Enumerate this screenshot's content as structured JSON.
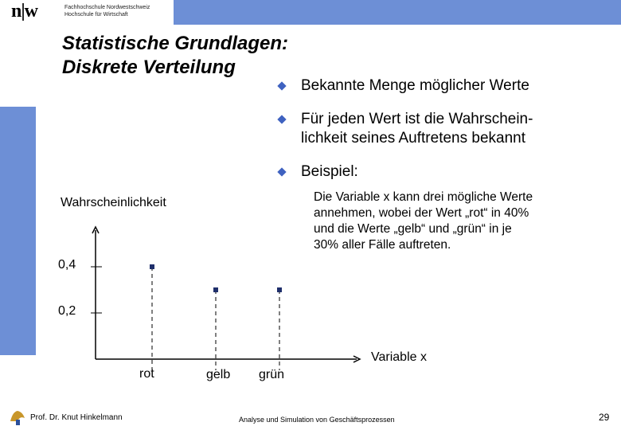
{
  "header": {
    "logo_mark": "n|w",
    "institution_line1": "Fachhochschule Nordwestschweiz",
    "institution_line2": "Hochschule für Wirtschaft",
    "band_color": "#6d8fd6"
  },
  "slide": {
    "title_line1": "Statistische Grundlagen:",
    "title_line2": "Diskrete Verteilung",
    "bullets": [
      {
        "icon": "diamond-bullet-icon",
        "lines": [
          "Bekannte Menge möglicher Werte"
        ]
      },
      {
        "icon": "diamond-bullet-icon",
        "lines": [
          "Für jeden Wert ist die Wahrschein-",
          "lichkeit seines Auftretens bekannt"
        ]
      },
      {
        "icon": "diamond-bullet-icon",
        "lines": [
          "Beispiel:"
        ]
      }
    ],
    "example_lines": [
      "Die Variable x kann drei mögliche Werte",
      "annehmen, wobei der Wert „rot“ in 40%",
      "und die Werte „gelb“ und „grün“ in je",
      "30% aller Fälle auftreten."
    ],
    "bullet_color": "#3f62c0"
  },
  "chart_data": {
    "type": "scatter",
    "ylabel": "Wahrscheinlichkeit",
    "xlabel": "Variable x",
    "categories": [
      "rot",
      "gelb",
      "grün"
    ],
    "values": [
      0.4,
      0.3,
      0.3
    ],
    "y_ticks": [
      "0,4",
      "0,2"
    ],
    "y_tick_values": [
      0.4,
      0.2
    ],
    "ylim": [
      0,
      0.5
    ],
    "grid": false
  },
  "footer": {
    "author": "Prof. Dr. Knut Hinkelmann",
    "course": "Analyse und Simulation von Geschäftsprozessen",
    "page": "29"
  }
}
